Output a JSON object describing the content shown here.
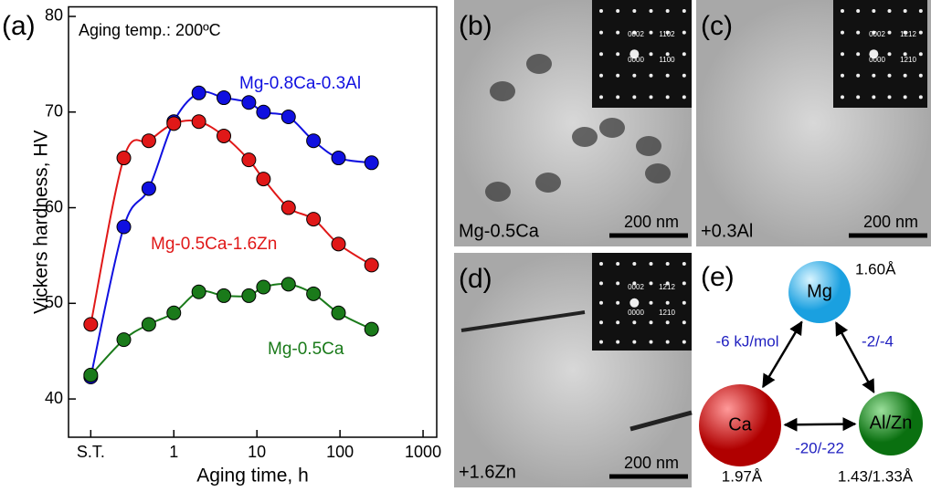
{
  "chart_data": {
    "type": "line",
    "panel_label": "(a)",
    "annotation": "Aging temp.: 200ºC",
    "x_label": "Aging time, h",
    "y_label": "Vickers hardness, HV",
    "x_log": true,
    "x": [
      0.1,
      0.25,
      0.5,
      1,
      2,
      4,
      8,
      12,
      24,
      48,
      96,
      240
    ],
    "series": [
      {
        "name": "Mg-0.8Ca-0.3Al",
        "color": "#1010e0",
        "values": [
          42.3,
          58,
          62,
          69,
          72,
          71.5,
          71,
          70,
          69.5,
          67,
          65.2,
          64.7
        ]
      },
      {
        "name": "Mg-0.5Ca-1.6Zn",
        "color": "#e01818",
        "values": [
          47.8,
          65.2,
          67,
          68.8,
          69,
          67.5,
          65,
          63,
          60,
          58.8,
          56.2,
          54
        ]
      },
      {
        "name": "Mg-0.5Ca",
        "color": "#1a7a1a",
        "values": [
          42.5,
          46.2,
          47.8,
          49,
          51.2,
          50.8,
          50.8,
          51.7,
          52,
          51,
          49,
          47.3
        ]
      }
    ],
    "xlim": [
      0.054,
      1460
    ],
    "xticks": [
      {
        "value": 0.1,
        "label": "S.T."
      },
      1,
      10,
      100,
      1000
    ],
    "ylim": [
      36,
      81
    ],
    "yticks": [
      40,
      50,
      60,
      70,
      80
    ]
  },
  "panels": [
    {
      "label": "(b)",
      "caption": "Mg-0.5Ca",
      "scale": "200 nm",
      "inset": [
        "0002",
        "1102",
        "0000",
        "1100"
      ]
    },
    {
      "label": "(c)",
      "caption": "+0.3Al",
      "scale": "200 nm",
      "inset": [
        "0002",
        "1212",
        "0000",
        "1210"
      ]
    },
    {
      "label": "(d)",
      "caption": "+1.6Zn",
      "scale": "200 nm",
      "inset": [
        "0002",
        "1212",
        "0000",
        "1210"
      ]
    }
  ],
  "diagram": {
    "label": "(e)",
    "nodes": [
      {
        "label": "Mg",
        "radius": "1.60Å"
      },
      {
        "label": "Ca",
        "radius": "1.97Å"
      },
      {
        "label": "Al/Zn",
        "radius": "1.43/1.33Å"
      }
    ],
    "edges": [
      "-6 kJ/mol",
      "-2/-4",
      "-20/-22"
    ]
  }
}
